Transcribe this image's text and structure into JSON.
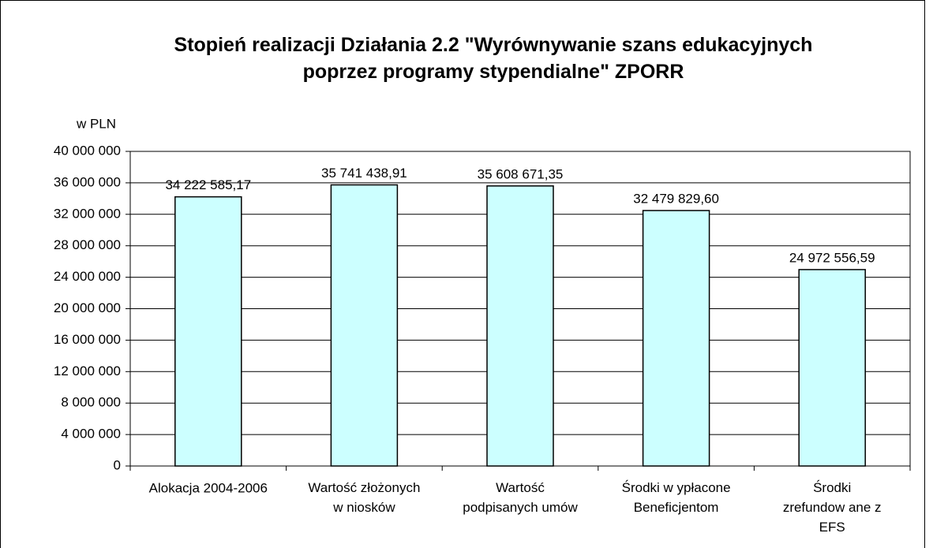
{
  "chart_data": {
    "type": "bar",
    "title": "Stopień realizacji Działania 2.2 \"Wyrównywanie szans edukacyjnych\npoprzez programy stypendialne\" ZPORR",
    "y_axis_label": "w PLN",
    "categories": [
      "Alokacja 2004-2006",
      "Wartość złożonych\nw niosków",
      "Wartość\npodpisanych umów",
      "Środki w ypłacone\nBeneficjentom",
      "Środki\nzrefundow ane z\nEFS"
    ],
    "values": [
      34222585.17,
      35741438.91,
      35608671.35,
      32479829.6,
      24972556.59
    ],
    "value_labels": [
      "34 222 585,17",
      "35 741 438,91",
      "35 608 671,35",
      "32 479 829,60",
      "24 972 556,59"
    ],
    "color": "#ccffff",
    "ylim": [
      0,
      40000000
    ],
    "yticks": [
      0,
      {
        "value": 4000000,
        "label": "4 000 000"
      },
      {
        "value": 8000000,
        "label": "8 000 000"
      },
      {
        "value": 12000000,
        "label": "12 000 000"
      },
      {
        "value": 16000000,
        "label": "16 000 000"
      },
      {
        "value": 20000000,
        "label": "20 000 000"
      },
      {
        "value": 24000000,
        "label": "24 000 000"
      },
      {
        "value": 28000000,
        "label": "28 000 000"
      },
      {
        "value": 32000000,
        "label": "32 000 000"
      },
      {
        "value": 36000000,
        "label": "36 000 000"
      },
      {
        "value": 40000000,
        "label": "40 000 000"
      }
    ],
    "grid": true
  }
}
